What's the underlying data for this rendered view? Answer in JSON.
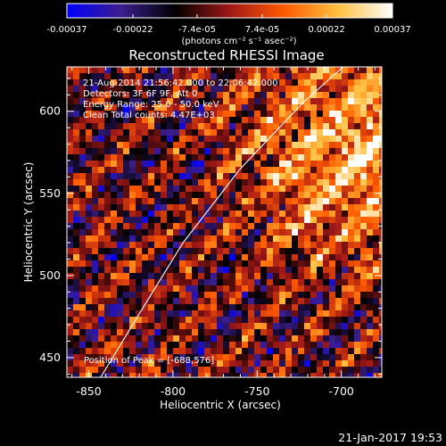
{
  "colorbar": {
    "tick_labels": [
      "-0.00037",
      "-0.00022",
      "-7.4e-05",
      "7.4e-05",
      "0.00022",
      "0.00037"
    ],
    "tick_values": [
      -0.00037,
      -0.00022,
      -7.4e-05,
      7.4e-05,
      0.00022,
      0.00037
    ],
    "range": [
      -0.00037,
      0.00037
    ],
    "units": "(photons cm⁻² s⁻¹ asec⁻²)",
    "colors": [
      "#0000ff",
      "#3b1e8c",
      "#000000",
      "#a01818",
      "#ff5a00",
      "#ffc040",
      "#ffffff"
    ]
  },
  "plot": {
    "title": "Reconstructed RHESSI Image",
    "info": {
      "time": "21-Aug-2014 21:56:42.000 to 22:06:42.000",
      "detectors": "Detectors: 3F 6F 9F, Att 0",
      "energy": "Energy Range: 25.0 - 50.0 keV",
      "clean": "Clean     Total counts: 4.47E+03"
    },
    "peak": "Position of Peak = [-688,576]",
    "x_label": "Heliocentric X (arcsec)",
    "y_label": "Heliocentric Y (arcsec)",
    "x_range": [
      -863,
      -676
    ],
    "y_range": [
      438,
      627
    ],
    "x_ticks": [
      -850,
      -800,
      -750,
      -700
    ],
    "y_ticks": [
      450,
      500,
      550,
      600
    ],
    "limb_points": [
      [
        -843,
        438
      ],
      [
        -818,
        480
      ],
      [
        -794,
        520
      ],
      [
        -760,
        565
      ],
      [
        -723,
        605
      ],
      [
        -699,
        627
      ]
    ]
  },
  "footer": {
    "date": "21-Jan-2017 19:53"
  }
}
